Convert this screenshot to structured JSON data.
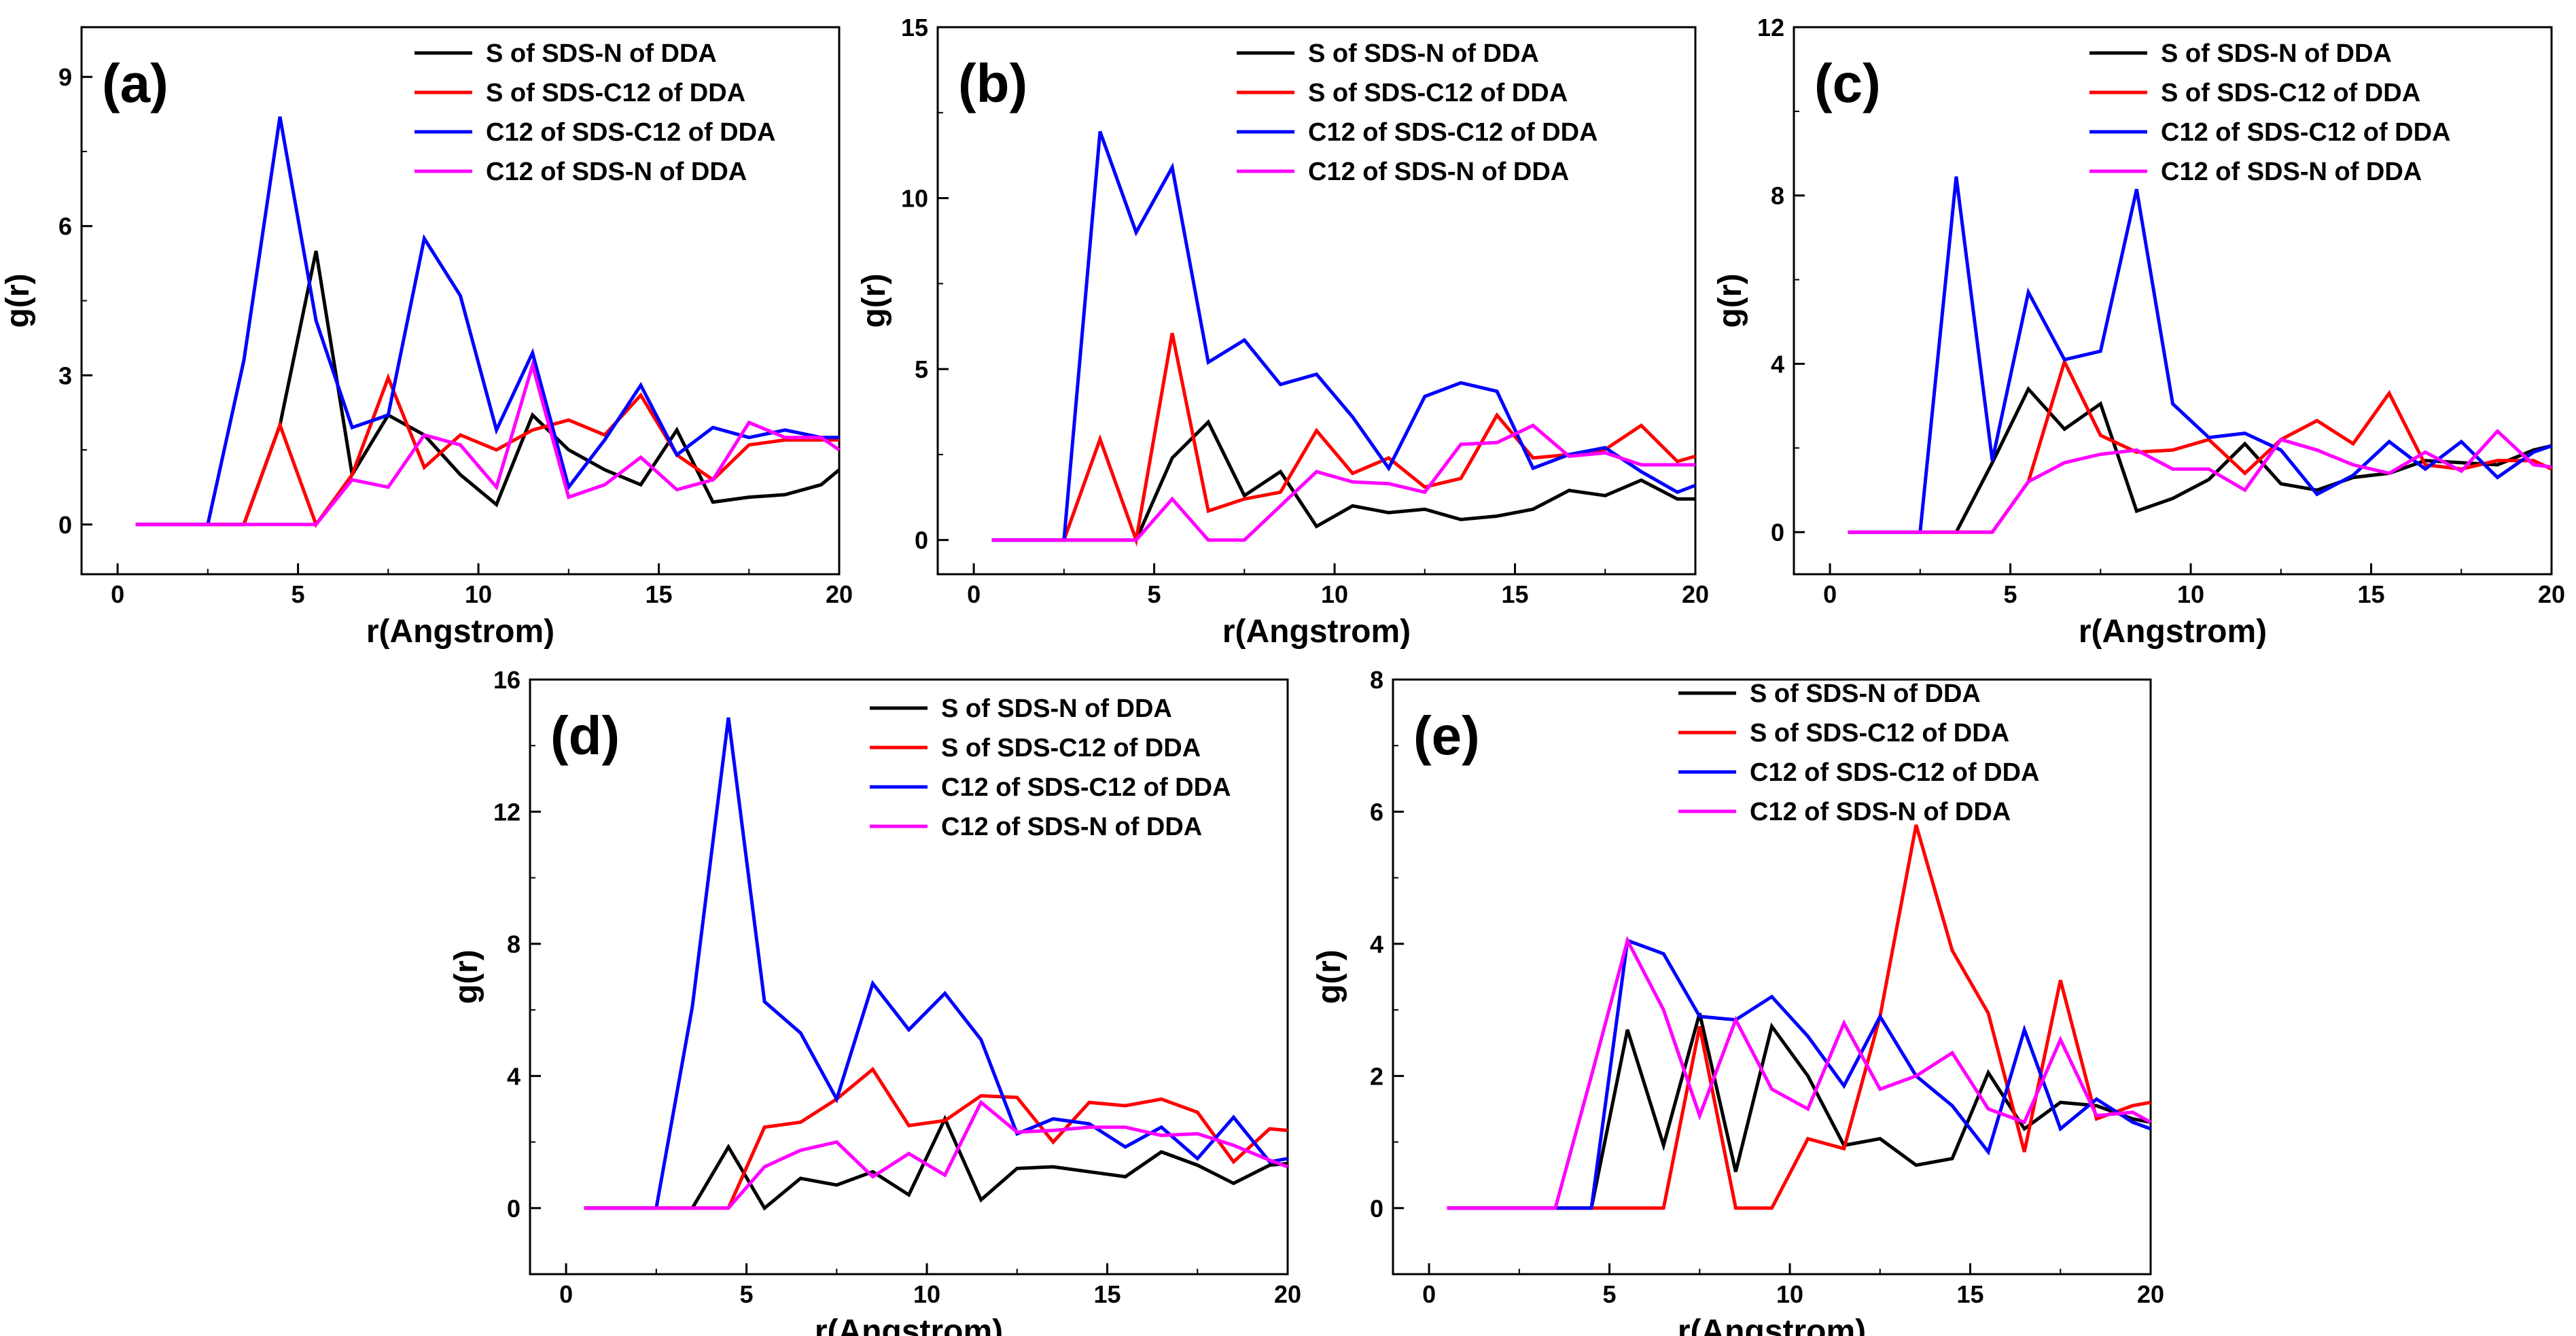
{
  "chart_data": [
    {
      "type": "line",
      "panel_label": "(a)",
      "xlabel": "r(Angstrom)",
      "ylabel": "g(r)",
      "xlim": [
        -1,
        20
      ],
      "ylim": [
        -1,
        10
      ],
      "xticks": [
        0,
        5,
        10,
        15,
        20
      ],
      "yticks": [
        0,
        3,
        6,
        9
      ],
      "legend_position": "top-right",
      "x": [
        0.5,
        1.5,
        2.5,
        3.5,
        4.5,
        5.5,
        6.5,
        7.5,
        8.5,
        9.5,
        10.5,
        11.5,
        12.5,
        13.5,
        14.5,
        15.5,
        16.5,
        17.5,
        18.5,
        19.5,
        20
      ],
      "series": [
        {
          "name": "S of SDS-N of DDA",
          "color": "#000000",
          "values": [
            0,
            0,
            0,
            0,
            2.0,
            5.5,
            1.0,
            2.2,
            1.8,
            1.0,
            0.4,
            2.2,
            1.5,
            1.1,
            0.8,
            1.9,
            0.45,
            0.55,
            0.6,
            0.8,
            1.1
          ]
        },
        {
          "name": "S of SDS-C12 of DDA",
          "color": "#ff0000",
          "values": [
            0,
            0,
            0,
            0,
            2.0,
            0,
            1.0,
            2.95,
            1.15,
            1.8,
            1.5,
            1.9,
            2.1,
            1.8,
            2.6,
            1.4,
            0.9,
            1.6,
            1.7,
            1.7,
            1.7
          ]
        },
        {
          "name": "C12 of SDS-C12 of DDA",
          "color": "#0000ff",
          "values": [
            0,
            0,
            0,
            3.3,
            8.2,
            4.1,
            1.95,
            2.2,
            5.75,
            4.6,
            1.9,
            3.45,
            0.75,
            1.7,
            2.8,
            1.4,
            1.95,
            1.75,
            1.9,
            1.75,
            1.75
          ]
        },
        {
          "name": "C12 of SDS-N of DDA",
          "color": "#ff00ff",
          "values": [
            0,
            0,
            0,
            0,
            0,
            0,
            0.9,
            0.75,
            1.8,
            1.6,
            0.75,
            3.2,
            0.55,
            0.8,
            1.35,
            0.7,
            0.9,
            2.05,
            1.75,
            1.75,
            1.5
          ]
        }
      ]
    },
    {
      "type": "line",
      "panel_label": "(b)",
      "xlabel": "r(Angstrom)",
      "ylabel": "g(r)",
      "xlim": [
        -1,
        20
      ],
      "ylim": [
        -1,
        15
      ],
      "xticks": [
        0,
        5,
        10,
        15,
        20
      ],
      "yticks": [
        0,
        5,
        10,
        15
      ],
      "legend_position": "top-right",
      "x": [
        0.5,
        1.5,
        2.5,
        3.5,
        4.5,
        5.5,
        6.5,
        7.5,
        8.5,
        9.5,
        10.5,
        11.5,
        12.5,
        13.5,
        14.5,
        15.5,
        16.5,
        17.5,
        18.5,
        19.5,
        20
      ],
      "series": [
        {
          "name": "S of SDS-N of DDA",
          "color": "#000000",
          "values": [
            0,
            0,
            0,
            0,
            0,
            2.4,
            3.45,
            1.3,
            2.0,
            0.4,
            1.0,
            0.8,
            0.9,
            0.6,
            0.7,
            0.9,
            1.45,
            1.3,
            1.75,
            1.2,
            1.2
          ]
        },
        {
          "name": "S of SDS-C12 of DDA",
          "color": "#ff0000",
          "values": [
            0,
            0,
            0,
            2.95,
            0,
            6.05,
            0.85,
            1.2,
            1.4,
            3.2,
            1.95,
            2.4,
            1.55,
            1.8,
            3.65,
            2.4,
            2.5,
            2.65,
            3.35,
            2.3,
            2.45
          ]
        },
        {
          "name": "C12 of SDS-C12 of DDA",
          "color": "#0000ff",
          "values": [
            0,
            0,
            0,
            11.95,
            9.0,
            10.9,
            5.2,
            5.85,
            4.55,
            4.85,
            3.6,
            2.1,
            4.2,
            4.6,
            4.35,
            2.1,
            2.5,
            2.7,
            2.0,
            1.4,
            1.6
          ]
        },
        {
          "name": "C12 of SDS-N of DDA",
          "color": "#ff00ff",
          "values": [
            0,
            0,
            0,
            0,
            0,
            1.2,
            0,
            0,
            1.0,
            2.0,
            1.7,
            1.65,
            1.4,
            2.8,
            2.85,
            3.35,
            2.45,
            2.55,
            2.2,
            2.2,
            2.2
          ]
        }
      ]
    },
    {
      "type": "line",
      "panel_label": "(c)",
      "xlabel": "r(Angstrom)",
      "ylabel": "g(r)",
      "xlim": [
        -1,
        20
      ],
      "ylim": [
        -1,
        12
      ],
      "xticks": [
        0,
        5,
        10,
        15,
        20
      ],
      "yticks": [
        0,
        4,
        8,
        12
      ],
      "legend_position": "top-right",
      "x": [
        0.5,
        1.5,
        2.5,
        3.5,
        4.5,
        5.5,
        6.5,
        7.5,
        8.5,
        9.5,
        10.5,
        11.5,
        12.5,
        13.5,
        14.5,
        15.5,
        16.5,
        17.5,
        18.5,
        19.5,
        20
      ],
      "series": [
        {
          "name": "S of SDS-N of DDA",
          "color": "#000000",
          "values": [
            0,
            0,
            0,
            0,
            1.65,
            3.4,
            2.45,
            3.05,
            0.5,
            0.8,
            1.25,
            2.1,
            1.15,
            1.0,
            1.3,
            1.4,
            1.7,
            1.65,
            1.6,
            1.95,
            2.05
          ]
        },
        {
          "name": "S of SDS-C12 of DDA",
          "color": "#ff0000",
          "values": [
            0,
            0,
            0,
            0,
            0,
            1.2,
            4.05,
            2.3,
            1.9,
            1.95,
            2.2,
            1.4,
            2.2,
            2.65,
            2.1,
            3.3,
            1.6,
            1.5,
            1.7,
            1.7,
            1.5
          ]
        },
        {
          "name": "C12 of SDS-C12 of DDA",
          "color": "#0000ff",
          "values": [
            0,
            0,
            0,
            8.45,
            1.7,
            5.7,
            4.1,
            4.3,
            8.15,
            3.05,
            2.25,
            2.35,
            1.95,
            0.9,
            1.35,
            2.15,
            1.5,
            2.15,
            1.3,
            1.9,
            2.05
          ]
        },
        {
          "name": "C12 of SDS-N of DDA",
          "color": "#ff00ff",
          "values": [
            0,
            0,
            0,
            0,
            0,
            1.2,
            1.65,
            1.85,
            1.95,
            1.5,
            1.5,
            1.0,
            2.2,
            1.95,
            1.6,
            1.4,
            1.9,
            1.45,
            2.4,
            1.6,
            1.55
          ]
        }
      ]
    },
    {
      "type": "line",
      "panel_label": "(d)",
      "xlabel": "r(Angstrom)",
      "ylabel": "g(r)",
      "xlim": [
        -1,
        20
      ],
      "ylim": [
        -2,
        16
      ],
      "xticks": [
        0,
        5,
        10,
        15,
        20
      ],
      "yticks": [
        0,
        4,
        8,
        12,
        16
      ],
      "legend_position": "top-right",
      "x": [
        0.5,
        1.5,
        2.5,
        3.5,
        4.5,
        5.5,
        6.5,
        7.5,
        8.5,
        9.5,
        10.5,
        11.5,
        12.5,
        13.5,
        14.5,
        15.5,
        16.5,
        17.5,
        18.5,
        19.5,
        20
      ],
      "series": [
        {
          "name": "S of SDS-N of DDA",
          "color": "#000000",
          "values": [
            0,
            0,
            0,
            0,
            1.85,
            0,
            0.9,
            0.7,
            1.1,
            0.4,
            2.7,
            0.25,
            1.2,
            1.25,
            1.1,
            0.95,
            1.7,
            1.3,
            0.75,
            1.3,
            1.35
          ]
        },
        {
          "name": "S of SDS-C12 of DDA",
          "color": "#ff0000",
          "values": [
            0,
            0,
            0,
            0,
            0,
            2.45,
            2.6,
            3.3,
            4.2,
            2.5,
            2.65,
            3.4,
            3.35,
            2.0,
            3.2,
            3.1,
            3.3,
            2.9,
            1.4,
            2.4,
            2.35
          ]
        },
        {
          "name": "C12 of SDS-C12 of DDA",
          "color": "#0000ff",
          "values": [
            0,
            0,
            0,
            6.1,
            14.85,
            6.25,
            5.3,
            3.3,
            6.8,
            5.4,
            6.5,
            5.1,
            2.25,
            2.7,
            2.55,
            1.85,
            2.45,
            1.5,
            2.75,
            1.4,
            1.5
          ]
        },
        {
          "name": "C12 of SDS-N of DDA",
          "color": "#ff00ff",
          "values": [
            0,
            0,
            0,
            0,
            0,
            1.25,
            1.75,
            2.0,
            0.95,
            1.65,
            1.0,
            3.2,
            2.3,
            2.35,
            2.45,
            2.45,
            2.2,
            2.25,
            1.9,
            1.45,
            1.25
          ]
        }
      ]
    },
    {
      "type": "line",
      "panel_label": "(e)",
      "xlabel": "r(Angstrom)",
      "ylabel": "g(r)",
      "xlim": [
        -1,
        20
      ],
      "ylim": [
        -1,
        8
      ],
      "xticks": [
        0,
        5,
        10,
        15,
        20
      ],
      "yticks": [
        0,
        2,
        4,
        6,
        8
      ],
      "legend_position": "top-left",
      "x": [
        0.5,
        1.5,
        2.5,
        3.5,
        4.5,
        5.5,
        6.5,
        7.5,
        8.5,
        9.5,
        10.5,
        11.5,
        12.5,
        13.5,
        14.5,
        15.5,
        16.5,
        17.5,
        18.5,
        19.5,
        20
      ],
      "series": [
        {
          "name": "S of SDS-N of DDA",
          "color": "#000000",
          "values": [
            0,
            0,
            0,
            0,
            0,
            2.7,
            0.95,
            2.95,
            0.55,
            2.75,
            2.0,
            0.95,
            1.05,
            0.65,
            0.75,
            2.05,
            1.2,
            1.6,
            1.55,
            1.35,
            1.3
          ]
        },
        {
          "name": "S of SDS-C12 of DDA",
          "color": "#ff0000",
          "values": [
            0,
            0,
            0,
            0,
            0,
            0,
            0,
            2.75,
            0,
            0,
            1.05,
            0.9,
            2.9,
            5.8,
            3.9,
            2.95,
            0.85,
            3.45,
            1.35,
            1.55,
            1.6
          ]
        },
        {
          "name": "C12 of SDS-C12 of DDA",
          "color": "#0000ff",
          "values": [
            0,
            0,
            0,
            0,
            0,
            4.05,
            3.85,
            2.9,
            2.85,
            3.2,
            2.6,
            1.85,
            2.9,
            2.0,
            1.55,
            0.85,
            2.7,
            1.2,
            1.65,
            1.3,
            1.2
          ]
        },
        {
          "name": "C12 of SDS-N of DDA",
          "color": "#ff00ff",
          "values": [
            0,
            0,
            0,
            0,
            2.0,
            4.05,
            3.0,
            1.4,
            2.85,
            1.8,
            1.5,
            2.8,
            1.8,
            2.0,
            2.35,
            1.5,
            1.3,
            2.55,
            1.4,
            1.45,
            1.3
          ]
        }
      ]
    }
  ]
}
